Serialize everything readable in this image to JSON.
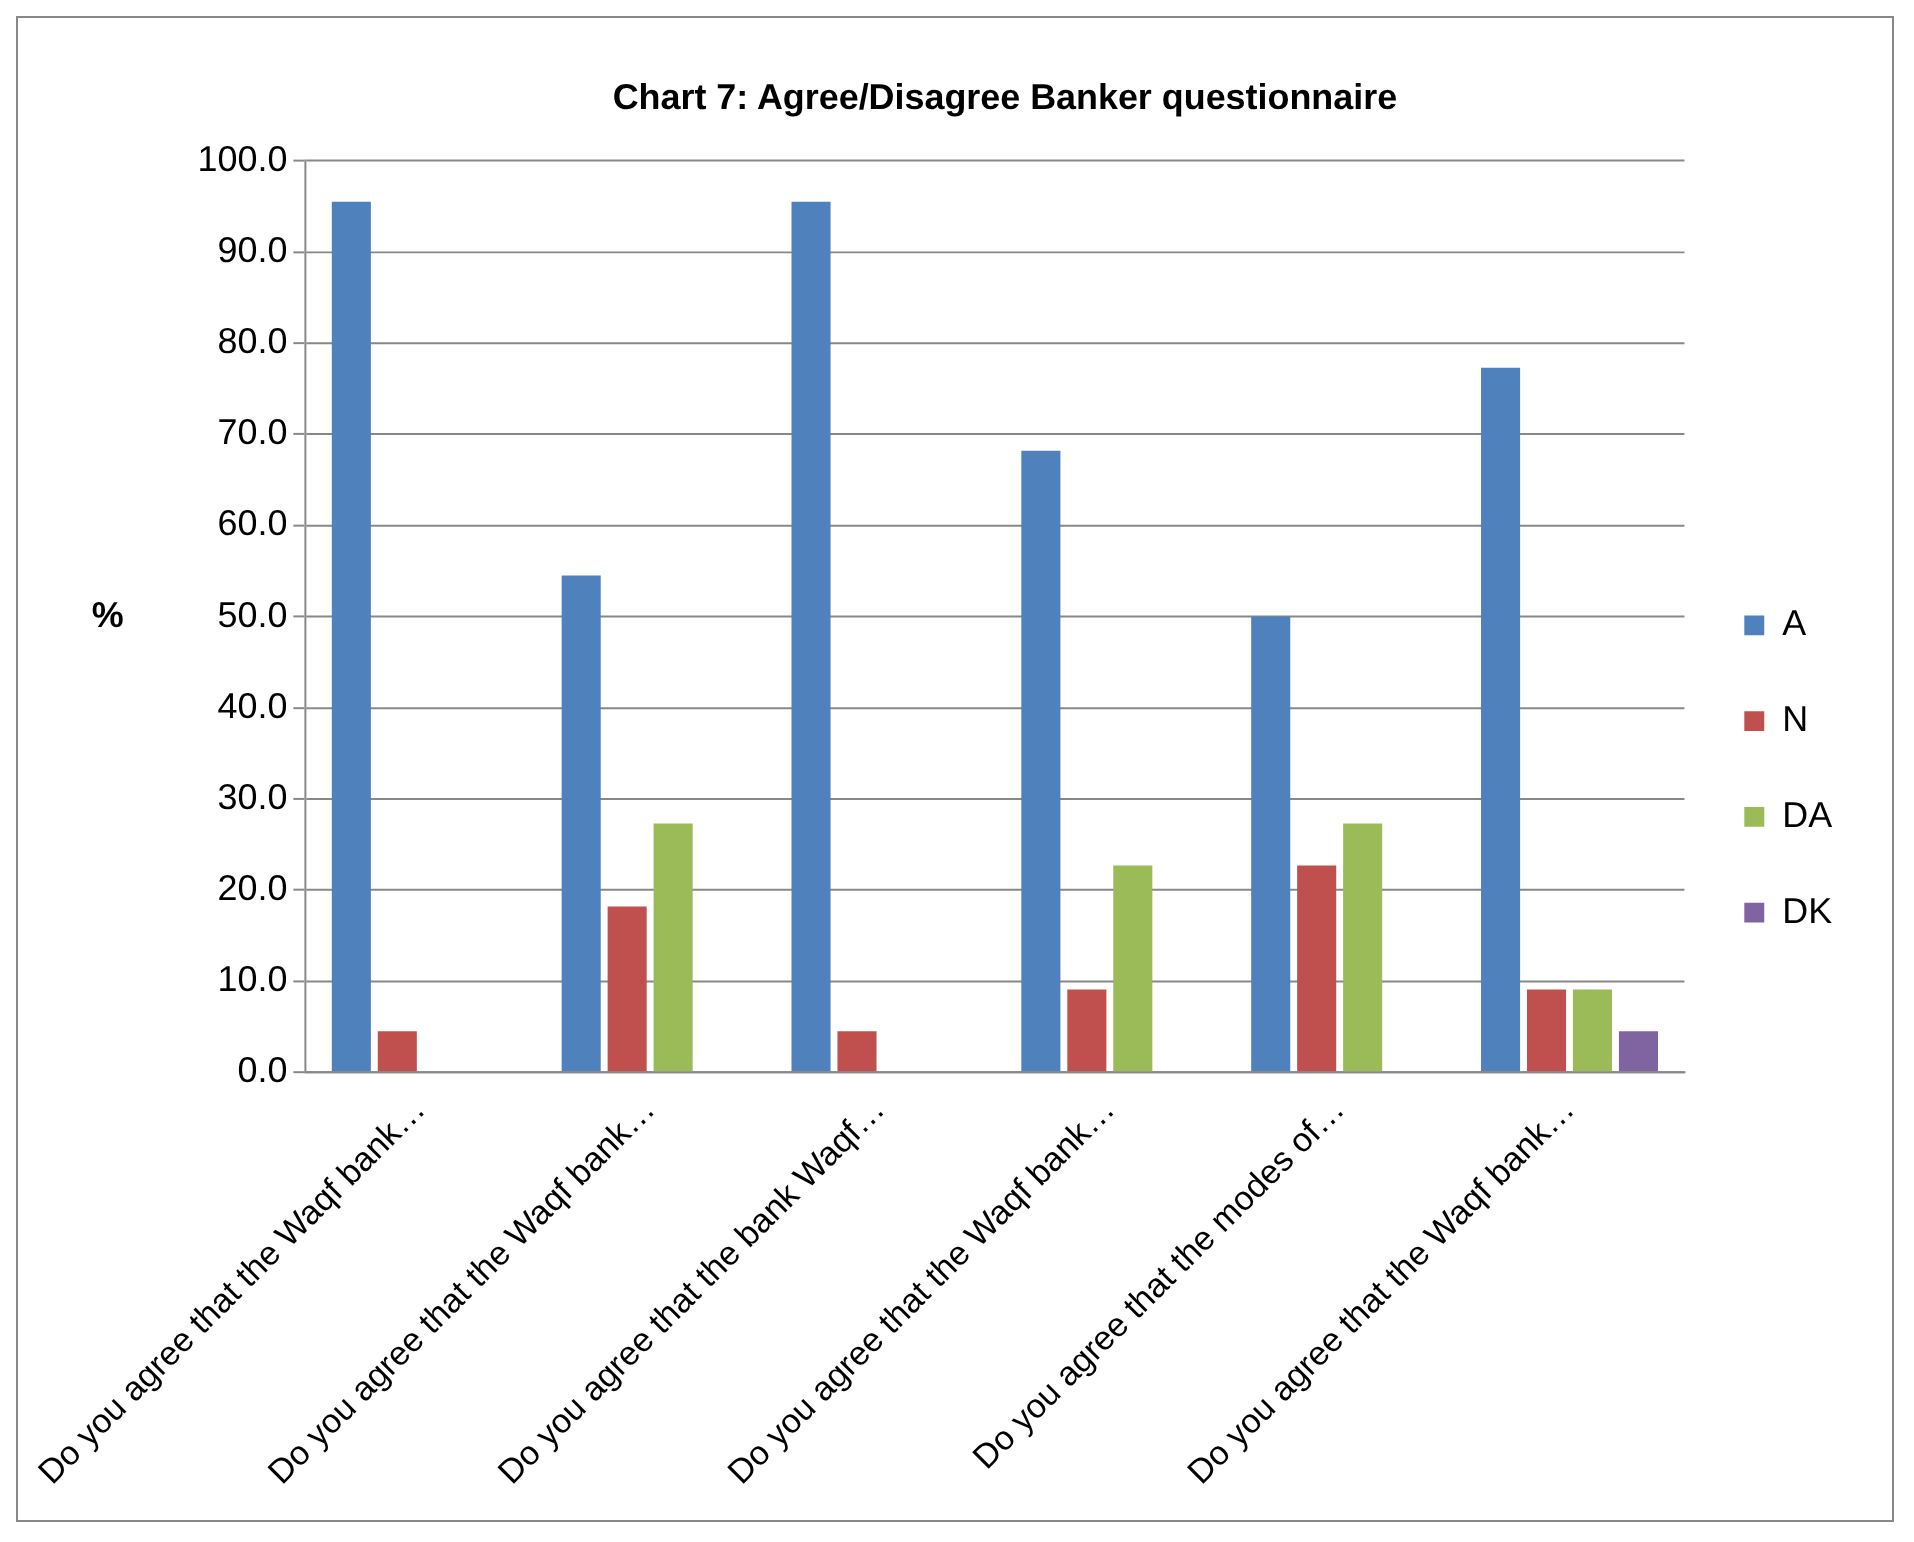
{
  "chart_data": {
    "type": "bar",
    "title": "Chart 7: Agree/Disagree Banker questionnaire",
    "ylabel": "%",
    "categories": [
      "Do you agree that the Waqf bank…",
      "Do you agree that the Waqf bank…",
      "Do you agree that the bank Waqf…",
      "Do you agree that the Waqf bank…",
      "Do you agree that the modes of…",
      "Do you agree that the Waqf bank…"
    ],
    "series": [
      {
        "name": "A",
        "color": "#4f81bd",
        "values": [
          95.5,
          54.5,
          95.5,
          68.2,
          50.0,
          77.3
        ]
      },
      {
        "name": "N",
        "color": "#c0504d",
        "values": [
          4.5,
          18.2,
          4.5,
          9.1,
          22.7,
          9.1
        ]
      },
      {
        "name": "DA",
        "color": "#9bbb59",
        "values": [
          0,
          27.3,
          0,
          22.7,
          27.3,
          9.1
        ]
      },
      {
        "name": "DK",
        "color": "#8064a2",
        "values": [
          0,
          0,
          0,
          0,
          0,
          4.5
        ]
      }
    ],
    "ylim": [
      0,
      100
    ],
    "yticks": [
      {
        "value": 0,
        "label": "0.0"
      },
      {
        "value": 10,
        "label": "10.0"
      },
      {
        "value": 20,
        "label": "20.0"
      },
      {
        "value": 30,
        "label": "30.0"
      },
      {
        "value": 40,
        "label": "40.0"
      },
      {
        "value": 50,
        "label": "50.0"
      },
      {
        "value": 60,
        "label": "60.0"
      },
      {
        "value": 70,
        "label": "70.0"
      },
      {
        "value": 80,
        "label": "80.0"
      },
      {
        "value": 90,
        "label": "90.0"
      },
      {
        "value": 100,
        "label": "100.0"
      }
    ],
    "grid": "y",
    "legend": "right"
  }
}
